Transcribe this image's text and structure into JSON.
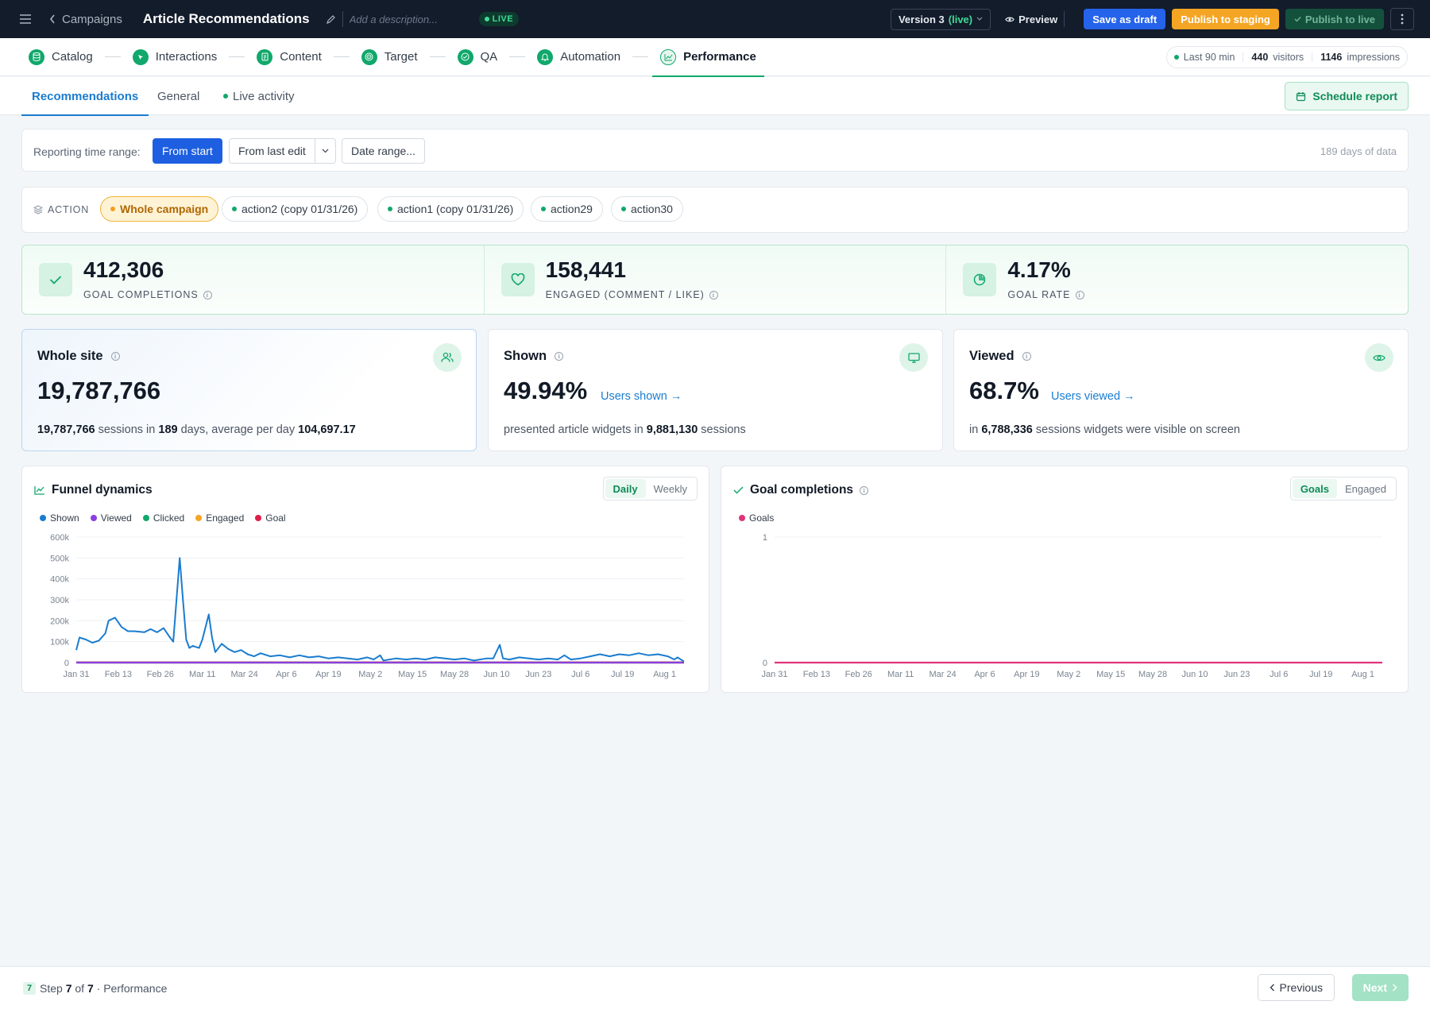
{
  "topbar": {
    "back_label": "Campaigns",
    "title": "Article Recommendations",
    "description_placeholder": "Add a description...",
    "live_badge": "LIVE",
    "version_label": "Version 3",
    "version_status": "(live)",
    "preview_label": "Preview",
    "save_draft_label": "Save as draft",
    "publish_staging_label": "Publish to staging",
    "publish_live_label": "Publish to live"
  },
  "stepper": {
    "steps": [
      "Catalog",
      "Interactions",
      "Content",
      "Target",
      "QA",
      "Automation",
      "Performance"
    ],
    "active_step": "Performance",
    "stats": {
      "window": "Last 90 min",
      "visitors_value": "440",
      "visitors_label": "visitors",
      "impressions_value": "1146",
      "impressions_label": "impressions"
    }
  },
  "tabs": {
    "items": [
      "Recommendations",
      "General",
      "Live activity"
    ],
    "active": "Recommendations",
    "schedule_label": "Schedule report"
  },
  "time_range": {
    "label": "Reporting time range:",
    "from_start": "From start",
    "from_last_edit": "From last edit",
    "date_range": "Date range...",
    "days_note": "189 days of data"
  },
  "actions": {
    "label": "ACTION",
    "items": [
      "Whole campaign",
      "action2 (copy 01/31/26)",
      "action1 (copy 01/31/26)",
      "action29",
      "action30"
    ],
    "selected": "Whole campaign"
  },
  "kpis": [
    {
      "value": "412,306",
      "label": "GOAL COMPLETIONS",
      "icon": "check-icon"
    },
    {
      "value": "158,441",
      "label": "ENGAGED (COMMENT / LIKE)",
      "icon": "heart-icon"
    },
    {
      "value": "4.17%",
      "label": "GOAL RATE",
      "icon": "pie-icon"
    }
  ],
  "metrics": {
    "whole_site": {
      "title": "Whole site",
      "value": "19,787,766",
      "sessions": "19,787,766",
      "t1": "sessions in",
      "days": "189",
      "t2": "days, average per day",
      "avg": "104,697.17"
    },
    "shown": {
      "title": "Shown",
      "value": "49.94%",
      "link": "Users shown →",
      "t1": "presented article widgets in",
      "sessions": "9,881,130",
      "t2": "sessions"
    },
    "viewed": {
      "title": "Viewed",
      "value": "68.7%",
      "link": "Users viewed →",
      "t1": "in",
      "sessions": "6,788,336",
      "t2": "sessions widgets were visible on screen"
    }
  },
  "funnel_chart": {
    "title": "Funnel dynamics",
    "toggle": [
      "Daily",
      "Weekly"
    ],
    "active_toggle": "Daily",
    "legend": [
      {
        "name": "Shown",
        "color": "#1a7ccf"
      },
      {
        "name": "Viewed",
        "color": "#8b3fe0"
      },
      {
        "name": "Clicked",
        "color": "#10a86b"
      },
      {
        "name": "Engaged",
        "color": "#f5a524"
      },
      {
        "name": "Goal",
        "color": "#e11d48"
      }
    ]
  },
  "goal_chart": {
    "title": "Goal completions",
    "toggle": [
      "Goals",
      "Engaged"
    ],
    "active_toggle": "Goals",
    "legend": [
      {
        "name": "Goals",
        "color": "#e0337a"
      }
    ]
  },
  "chart_data": [
    {
      "type": "line",
      "title": "Funnel dynamics",
      "x_ticks": [
        "Jan 31",
        "Feb 13",
        "Feb 26",
        "Mar 11",
        "Mar 24",
        "Apr 6",
        "Apr 19",
        "May 2",
        "May 15",
        "May 28",
        "Jun 10",
        "Jun 23",
        "Jul 6",
        "Jul 19",
        "Aug 1"
      ],
      "y_ticks": [
        "0",
        "100k",
        "200k",
        "300k",
        "400k",
        "500k",
        "600k"
      ],
      "ylim": [
        0,
        600000
      ],
      "x_start": "2026-01-31",
      "x_end": "2026-08-07",
      "series": [
        {
          "name": "Shown",
          "points": [
            [
              "2026-01-31",
              60000
            ],
            [
              "2026-02-01",
              120000
            ],
            [
              "2026-02-03",
              110000
            ],
            [
              "2026-02-05",
              95000
            ],
            [
              "2026-02-07",
              105000
            ],
            [
              "2026-02-09",
              140000
            ],
            [
              "2026-02-10",
              200000
            ],
            [
              "2026-02-12",
              215000
            ],
            [
              "2026-02-14",
              170000
            ],
            [
              "2026-02-16",
              150000
            ],
            [
              "2026-02-18",
              150000
            ],
            [
              "2026-02-21",
              145000
            ],
            [
              "2026-02-23",
              160000
            ],
            [
              "2026-02-25",
              145000
            ],
            [
              "2026-02-27",
              165000
            ],
            [
              "2026-03-01",
              120000
            ],
            [
              "2026-03-02",
              100000
            ],
            [
              "2026-03-04",
              500000
            ],
            [
              "2026-03-05",
              300000
            ],
            [
              "2026-03-06",
              110000
            ],
            [
              "2026-03-07",
              70000
            ],
            [
              "2026-03-08",
              80000
            ],
            [
              "2026-03-10",
              70000
            ],
            [
              "2026-03-11",
              110000
            ],
            [
              "2026-03-13",
              230000
            ],
            [
              "2026-03-14",
              120000
            ],
            [
              "2026-03-15",
              50000
            ],
            [
              "2026-03-17",
              90000
            ],
            [
              "2026-03-19",
              65000
            ],
            [
              "2026-03-21",
              50000
            ],
            [
              "2026-03-23",
              60000
            ],
            [
              "2026-03-25",
              40000
            ],
            [
              "2026-03-27",
              30000
            ],
            [
              "2026-03-29",
              45000
            ],
            [
              "2026-04-01",
              30000
            ],
            [
              "2026-04-04",
              35000
            ],
            [
              "2026-04-07",
              25000
            ],
            [
              "2026-04-10",
              35000
            ],
            [
              "2026-04-13",
              25000
            ],
            [
              "2026-04-16",
              30000
            ],
            [
              "2026-04-19",
              20000
            ],
            [
              "2026-04-22",
              25000
            ],
            [
              "2026-04-25",
              20000
            ],
            [
              "2026-04-28",
              15000
            ],
            [
              "2026-05-01",
              25000
            ],
            [
              "2026-05-03",
              15000
            ],
            [
              "2026-05-05",
              35000
            ],
            [
              "2026-05-06",
              10000
            ],
            [
              "2026-05-10",
              20000
            ],
            [
              "2026-05-13",
              15000
            ],
            [
              "2026-05-16",
              20000
            ],
            [
              "2026-05-19",
              15000
            ],
            [
              "2026-05-22",
              25000
            ],
            [
              "2026-05-25",
              20000
            ],
            [
              "2026-05-28",
              15000
            ],
            [
              "2026-05-31",
              20000
            ],
            [
              "2026-06-03",
              10000
            ],
            [
              "2026-06-07",
              20000
            ],
            [
              "2026-06-09",
              20000
            ],
            [
              "2026-06-11",
              85000
            ],
            [
              "2026-06-12",
              20000
            ],
            [
              "2026-06-14",
              15000
            ],
            [
              "2026-06-17",
              25000
            ],
            [
              "2026-06-20",
              20000
            ],
            [
              "2026-06-23",
              15000
            ],
            [
              "2026-06-26",
              20000
            ],
            [
              "2026-06-29",
              15000
            ],
            [
              "2026-07-01",
              35000
            ],
            [
              "2026-07-03",
              15000
            ],
            [
              "2026-07-06",
              20000
            ],
            [
              "2026-07-09",
              30000
            ],
            [
              "2026-07-12",
              40000
            ],
            [
              "2026-07-15",
              30000
            ],
            [
              "2026-07-18",
              40000
            ],
            [
              "2026-07-21",
              35000
            ],
            [
              "2026-07-24",
              45000
            ],
            [
              "2026-07-27",
              35000
            ],
            [
              "2026-07-30",
              40000
            ],
            [
              "2026-08-02",
              30000
            ],
            [
              "2026-08-04",
              15000
            ],
            [
              "2026-08-05",
              25000
            ],
            [
              "2026-08-07",
              5000
            ]
          ]
        },
        {
          "name": "Viewed",
          "points": [
            [
              "2026-01-31",
              0
            ],
            [
              "2026-08-07",
              0
            ]
          ]
        },
        {
          "name": "Clicked",
          "points": [
            [
              "2026-01-31",
              0
            ],
            [
              "2026-08-07",
              0
            ]
          ]
        },
        {
          "name": "Engaged",
          "points": [
            [
              "2026-01-31",
              0
            ],
            [
              "2026-08-07",
              0
            ]
          ]
        },
        {
          "name": "Goal",
          "points": [
            [
              "2026-01-31",
              1500
            ],
            [
              "2026-08-07",
              1500
            ]
          ]
        }
      ]
    },
    {
      "type": "line",
      "title": "Goal completions",
      "x_ticks": [
        "Jan 31",
        "Feb 13",
        "Feb 26",
        "Mar 11",
        "Mar 24",
        "Apr 6",
        "Apr 19",
        "May 2",
        "May 15",
        "May 28",
        "Jun 10",
        "Jun 23",
        "Jul 6",
        "Jul 19",
        "Aug 1"
      ],
      "y_ticks": [
        "0",
        "1"
      ],
      "ylim": [
        0,
        1
      ],
      "x_start": "2026-01-31",
      "x_end": "2026-08-07",
      "series": [
        {
          "name": "Goals",
          "points": [
            [
              "2026-01-31",
              0
            ],
            [
              "2026-08-07",
              0
            ]
          ]
        }
      ]
    }
  ],
  "footer": {
    "step_num": "7",
    "step_word": "Step",
    "step_current": "7",
    "step_of": "of",
    "step_total": "7",
    "step_suffix": "· Performance",
    "prev_label": "Previous",
    "next_label": "Next"
  }
}
